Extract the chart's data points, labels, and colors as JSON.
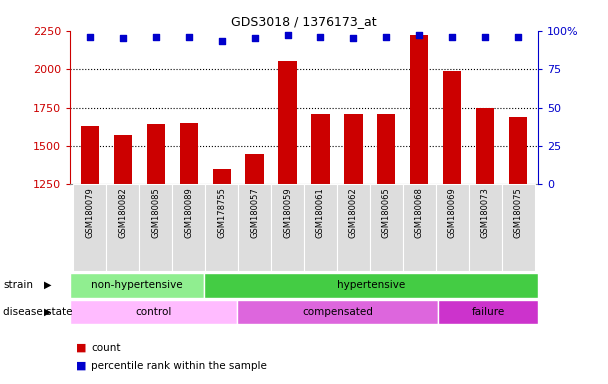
{
  "title": "GDS3018 / 1376173_at",
  "samples": [
    "GSM180079",
    "GSM180082",
    "GSM180085",
    "GSM180089",
    "GSM178755",
    "GSM180057",
    "GSM180059",
    "GSM180061",
    "GSM180062",
    "GSM180065",
    "GSM180068",
    "GSM180069",
    "GSM180073",
    "GSM180075"
  ],
  "counts": [
    1630,
    1570,
    1640,
    1650,
    1350,
    1450,
    2050,
    1710,
    1710,
    1710,
    2220,
    1990,
    1750,
    1690
  ],
  "percentile_ranks": [
    96,
    95,
    96,
    96,
    93,
    95,
    97,
    96,
    95,
    96,
    97,
    96,
    96,
    96
  ],
  "bar_color": "#cc0000",
  "dot_color": "#0000cc",
  "ylim_left": [
    1250,
    2250
  ],
  "ylim_right": [
    0,
    100
  ],
  "yticks_left": [
    1250,
    1500,
    1750,
    2000,
    2250
  ],
  "yticks_right": [
    0,
    25,
    50,
    75,
    100
  ],
  "dotted_lines": [
    1500,
    1750,
    2000
  ],
  "strain_groups": [
    {
      "label": "non-hypertensive",
      "start": 0,
      "end": 4,
      "color": "#90ee90"
    },
    {
      "label": "hypertensive",
      "start": 4,
      "end": 14,
      "color": "#44cc44"
    }
  ],
  "disease_groups": [
    {
      "label": "control",
      "start": 0,
      "end": 5,
      "color": "#ffbbff"
    },
    {
      "label": "compensated",
      "start": 5,
      "end": 11,
      "color": "#dd66dd"
    },
    {
      "label": "failure",
      "start": 11,
      "end": 14,
      "color": "#cc33cc"
    }
  ],
  "legend_count_color": "#cc0000",
  "legend_dot_color": "#0000cc",
  "bg_color": "#ffffff",
  "tick_color_left": "#cc0000",
  "tick_color_right": "#0000cc",
  "xticklabel_bg": "#dddddd"
}
